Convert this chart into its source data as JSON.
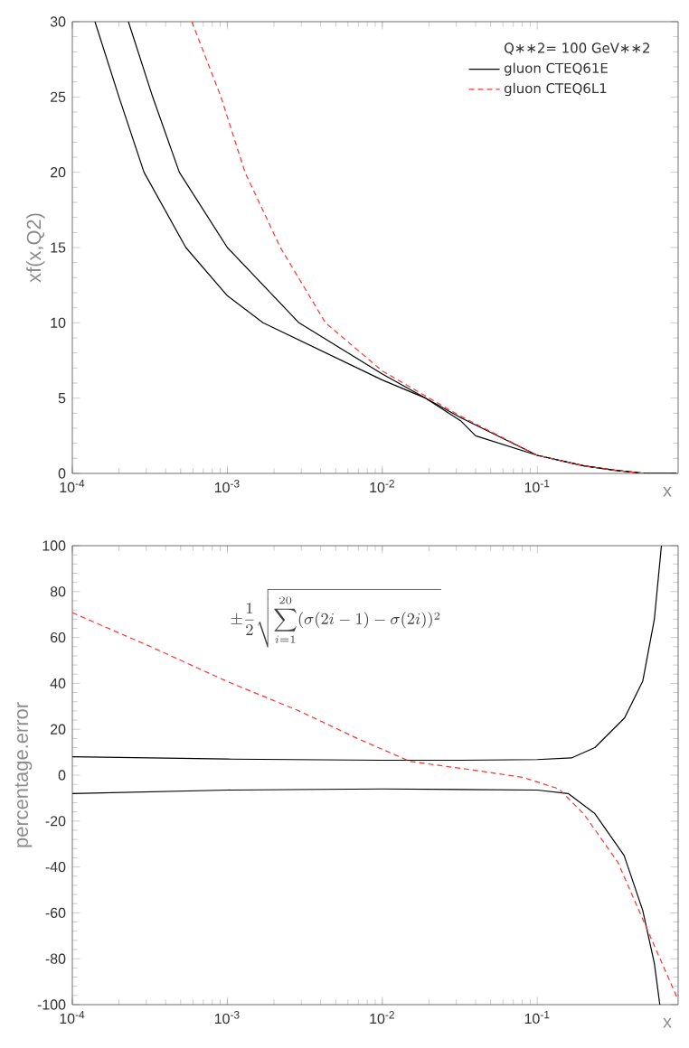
{
  "chart_data": [
    {
      "type": "line",
      "ylabel": "xf(x,Q2)",
      "xlabel": "x",
      "legend_title": "Q∗∗2=  100    GeV∗∗2",
      "legend": "top right",
      "log": "x",
      "grid": false,
      "marker": "none",
      "xlim": [
        0.0001,
        0.81
      ],
      "ylim": [
        0,
        30
      ],
      "xticks": [
        {
          "value": 0.0001,
          "label": "10$^{-4}$"
        },
        {
          "value": 0.001,
          "label": "10$^{-3}$"
        },
        {
          "value": 0.01,
          "label": "10$^{-2}$"
        },
        {
          "value": 0.1,
          "label": "10$^{-1}$"
        }
      ],
      "yticks": [
        0,
        5,
        10,
        15,
        20,
        25,
        30
      ],
      "series": [
        {
          "name": "gluon      CTEQ61E",
          "color": "#000000",
          "line_style": "solid",
          "x": [
            0.00014,
            0.0002,
            0.00029,
            0.00054,
            0.001,
            0.0017,
            0.01,
            0.019,
            0.032,
            0.04,
            0.1,
            0.2,
            0.32,
            0.5,
            0.79
          ],
          "values": [
            30,
            25,
            20,
            15,
            11.8,
            10,
            6.2,
            5,
            3.5,
            2.5,
            1.2,
            0.5,
            0.2,
            0,
            0
          ]
        },
        {
          "color": "#000000",
          "line_style": "solid",
          "x": [
            0.00023,
            0.00033,
            0.00049,
            0.001,
            0.0029,
            0.01,
            0.032,
            0.1,
            0.2,
            0.32,
            0.5,
            0.79
          ],
          "values": [
            30,
            25,
            20,
            15,
            10,
            6.6,
            3.7,
            1.2,
            0.5,
            0.2,
            0,
            0
          ]
        },
        {
          "name": "gluon      CTEQ6L1",
          "color": "#ff3333",
          "line_style": "dashed",
          "x": [
            0.00059,
            0.00091,
            0.0013,
            0.0022,
            0.0043,
            0.01,
            0.032,
            0.1,
            0.2,
            0.32,
            0.5
          ],
          "values": [
            30,
            25,
            20,
            15,
            10,
            6.8,
            3.8,
            1.2,
            0.5,
            0.2,
            0
          ]
        }
      ]
    },
    {
      "type": "line",
      "ylabel": "percentage.error",
      "xlabel": "x",
      "log": "x",
      "grid": false,
      "marker": "none",
      "annotations": [
        "\\pm\\frac{1}{2}\\sqrt{\\sum_{i=1}^{20}(\\sigma(2i-1)-\\sigma(2i))^2}"
      ],
      "xlim": [
        0.0001,
        0.81
      ],
      "ylim": [
        -100,
        100
      ],
      "xticks": [
        {
          "value": 0.0001,
          "label": "10$^{-4}$"
        },
        {
          "value": 0.001,
          "label": "10$^{-3}$"
        },
        {
          "value": 0.01,
          "label": "10$^{-2}$"
        },
        {
          "value": 0.1,
          "label": "10$^{-1}$"
        }
      ],
      "yticks": [
        -100,
        -80,
        -60,
        -40,
        -20,
        0,
        20,
        40,
        60,
        80,
        100
      ],
      "series": [
        {
          "color": "#000000",
          "line_style": "solid",
          "x": [
            0.0001,
            0.001,
            0.01,
            0.032,
            0.1,
            0.166,
            0.235,
            0.366,
            0.479,
            0.569,
            0.632
          ],
          "values": [
            8,
            7,
            6.5,
            6.5,
            6.8,
            7.5,
            12,
            25,
            41,
            68,
            100
          ]
        },
        {
          "color": "#000000",
          "line_style": "solid",
          "x": [
            0.0001,
            0.001,
            0.01,
            0.1,
            0.158,
            0.234,
            0.363,
            0.479,
            0.569,
            0.617
          ],
          "values": [
            -8,
            -6.5,
            -6,
            -6.5,
            -8,
            -16.6,
            -35,
            -59,
            -82,
            -100
          ]
        },
        {
          "color": "#ff3333",
          "line_style": "dashed",
          "x": [
            0.0001,
            0.00032,
            0.001,
            0.0029,
            0.0069,
            0.0151,
            0.0407,
            0.0813,
            0.138,
            0.2,
            0.331,
            0.525,
            0.81
          ],
          "values": [
            70.8,
            56,
            40.8,
            28,
            16,
            6,
            2,
            -1,
            -6,
            -17,
            -38,
            -69,
            -98
          ]
        }
      ]
    }
  ]
}
